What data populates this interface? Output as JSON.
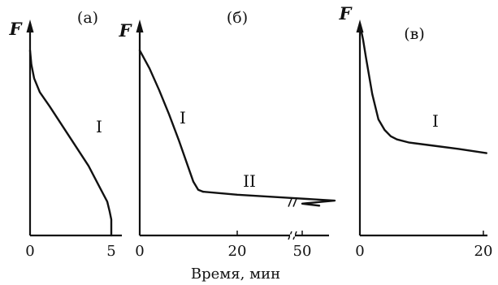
{
  "chart_data": [
    {
      "type": "line",
      "panel_label": "(а)",
      "ylabel": "F",
      "xticks": [
        "0",
        "5"
      ],
      "xlim": [
        0,
        5.6
      ],
      "series": [
        {
          "name": "I",
          "x": [
            0,
            0.08,
            0.25,
            0.6,
            1.2,
            2.0,
            2.8,
            3.6,
            4.3,
            4.75,
            4.9,
            5.0,
            5.0
          ],
          "y": [
            0.93,
            0.86,
            0.79,
            0.72,
            0.65,
            0.55,
            0.45,
            0.35,
            0.24,
            0.17,
            0.12,
            0.08,
            0.0
          ]
        }
      ]
    },
    {
      "type": "line",
      "panel_label": "(б)",
      "ylabel": "F",
      "xticks": [
        "0",
        "20",
        "50"
      ],
      "xbreak": true,
      "series": [
        {
          "name": "I",
          "x": [
            0,
            2,
            4,
            6,
            8,
            10,
            11,
            12,
            13
          ],
          "y": [
            0.93,
            0.84,
            0.73,
            0.61,
            0.48,
            0.34,
            0.27,
            0.23,
            0.22
          ]
        },
        {
          "name": "II",
          "x": [
            13,
            20,
            30,
            40,
            50,
            57
          ],
          "y": [
            0.22,
            0.205,
            0.19,
            0.175,
            0.16,
            0.15
          ]
        }
      ]
    },
    {
      "type": "line",
      "panel_label": "(в)",
      "ylabel": "F",
      "xticks": [
        "0",
        "20"
      ],
      "xlim": [
        0,
        21
      ],
      "series": [
        {
          "name": "I",
          "x": [
            0,
            0.5,
            1,
            2,
            3,
            4,
            5,
            6,
            8,
            12,
            16,
            20.5
          ],
          "y": [
            1.0,
            0.93,
            0.84,
            0.67,
            0.55,
            0.5,
            0.47,
            0.455,
            0.44,
            0.425,
            0.41,
            0.39
          ]
        }
      ]
    }
  ],
  "xlabel": "Время, мин"
}
